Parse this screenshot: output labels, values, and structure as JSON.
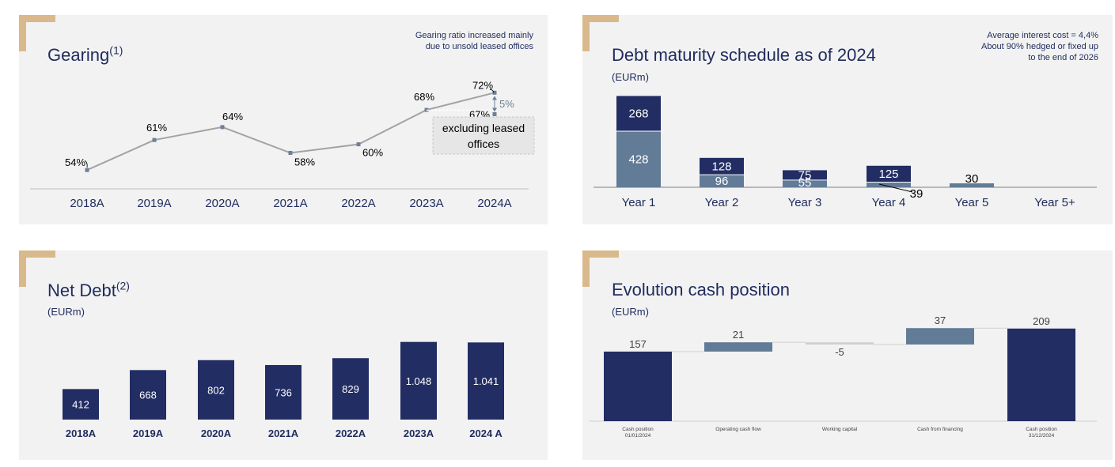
{
  "colors": {
    "navy": "#222d63",
    "slate": "#627b96",
    "gold": "#d9b98b",
    "line": "#a3a3a3",
    "marker": "#6d8098"
  },
  "gearing": {
    "title": "Gearing",
    "title_sup": "(1)",
    "note_line1": "Gearing ratio increased mainly",
    "note_line2": "due to unsold leased offices",
    "delta_label": "5%",
    "excl_value_label": "67%",
    "excl_box_line1": "excluding leased",
    "excl_box_line2": "offices"
  },
  "debt_maturity": {
    "title": "Debt maturity schedule as of 2024",
    "unit": "(EURm)",
    "note_line1": "Average interest cost = 4,4%",
    "note_line2": "About 90% hedged or fixed up",
    "note_line3": "to the end of 2026"
  },
  "net_debt": {
    "title": "Net Debt",
    "title_sup": "(2)",
    "unit": "(EURm)"
  },
  "cash": {
    "title": "Evolution cash position",
    "unit": "(EURm)"
  },
  "chart_data": [
    {
      "type": "line",
      "categories": [
        "2018A",
        "2019A",
        "2020A",
        "2021A",
        "2022A",
        "2023A",
        "2024A"
      ],
      "values": [
        54,
        61,
        64,
        58,
        60,
        68,
        72
      ],
      "labels": [
        "54%",
        "61%",
        "64%",
        "58%",
        "60%",
        "68%",
        "72%"
      ],
      "extra_points": [
        {
          "x": "2024A",
          "value": 67,
          "label": "67%"
        }
      ],
      "ylim": [
        50,
        75
      ]
    },
    {
      "type": "bar",
      "stacked": true,
      "categories": [
        "Year 1",
        "Year 2",
        "Year 3",
        "Year 4",
        "Year 5",
        "Year 5+"
      ],
      "series": [
        {
          "color": "#627b96",
          "values": [
            428,
            96,
            55,
            39,
            30,
            0
          ]
        },
        {
          "color": "#222d63",
          "values": [
            268,
            128,
            75,
            125,
            0,
            0
          ]
        }
      ],
      "bottom_labels": [
        "428",
        "96",
        "55",
        "39",
        "30",
        ""
      ],
      "top_labels": [
        "268",
        "128",
        "75",
        "125",
        "",
        ""
      ],
      "ylim": [
        0,
        700
      ]
    },
    {
      "type": "bar",
      "categories": [
        "2018A",
        "2019A",
        "2020A",
        "2021A",
        "2022A",
        "2023A",
        "2024 A"
      ],
      "values": [
        412,
        668,
        802,
        736,
        829,
        1048,
        1041
      ],
      "value_labels": [
        "412",
        "668",
        "802",
        "736",
        "829",
        "1.048",
        "1.041"
      ],
      "ylim": [
        0,
        1100
      ]
    },
    {
      "type": "bar",
      "subtype": "waterfall",
      "categories": [
        "Cash position 01/01/2024",
        "Operating cash flow",
        "Working capital",
        "Cash from financing",
        "Cash position 31/12/2024"
      ],
      "category_lines": [
        [
          "Cash position",
          "01/01/2024"
        ],
        [
          "Operating cash flow"
        ],
        [
          "Working capital"
        ],
        [
          "Cash from financing"
        ],
        [
          "Cash position",
          "31/12/2024"
        ]
      ],
      "values": [
        157,
        21,
        -5,
        37,
        209
      ],
      "value_labels": [
        "157",
        "21",
        "-5",
        "37",
        "209"
      ],
      "kinds": [
        "total",
        "delta",
        "delta",
        "delta",
        "total"
      ],
      "ylim": [
        0,
        220
      ]
    }
  ]
}
